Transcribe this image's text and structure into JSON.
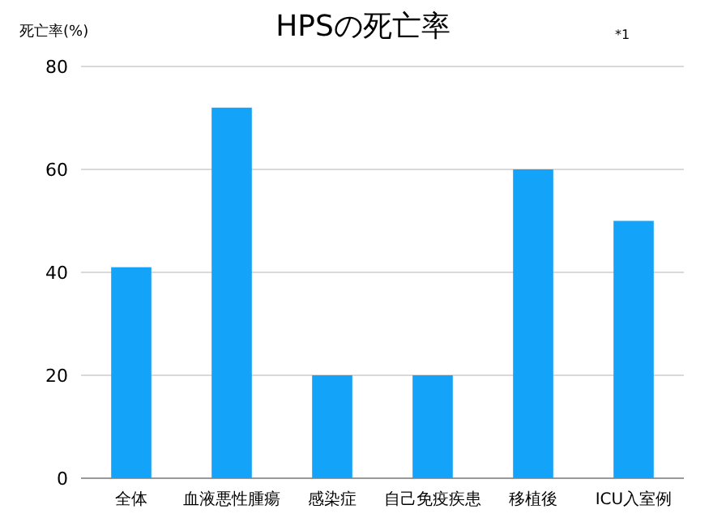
{
  "chart_data": {
    "type": "bar",
    "title": "HPSの死亡率",
    "ylabel": "死亡率(%)",
    "annotations": [
      "*1"
    ],
    "categories": [
      "全体",
      "血液悪性腫瘍",
      "感染症",
      "自己免疫疾患",
      "移植後",
      "ICU入室例"
    ],
    "values": [
      41,
      72,
      20,
      20,
      60,
      50
    ],
    "color": "#13a4f9",
    "ylim": [
      0,
      80
    ],
    "yticks": [
      0,
      20,
      40,
      60,
      80
    ],
    "grid": "y"
  }
}
